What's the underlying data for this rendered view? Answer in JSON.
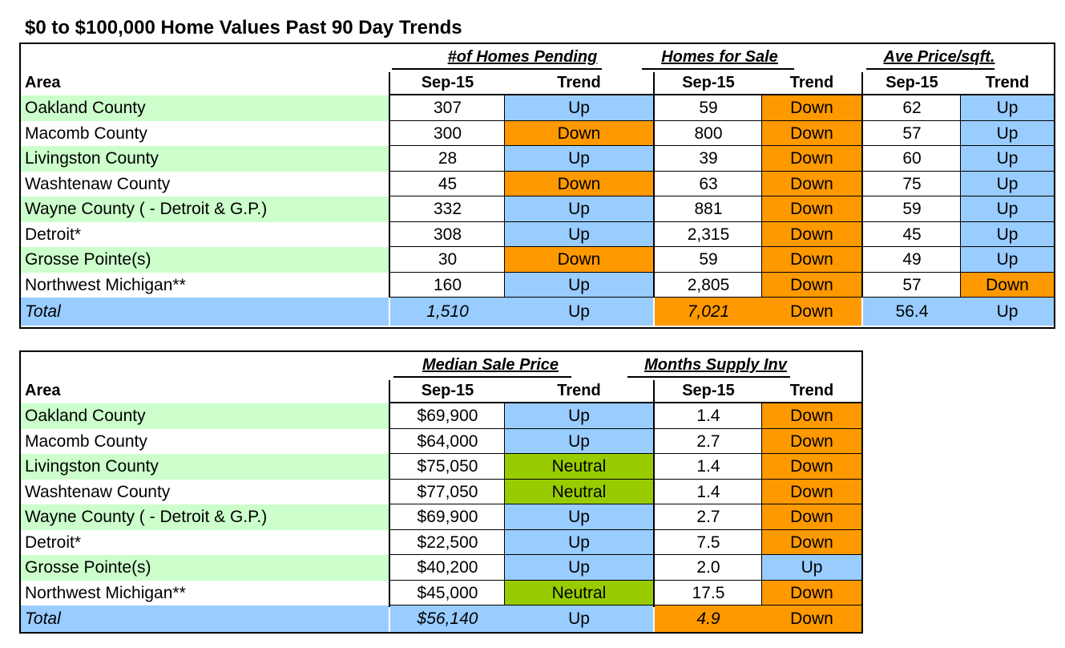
{
  "title": "$0 to $100,000 Home Values Past 90 Day Trends",
  "colors": {
    "area_green": "#CCFFCC",
    "up_blue": "#99CCFF",
    "down_orange": "#FF9900",
    "neutral_green": "#99CC00",
    "white": "#FFFFFF"
  },
  "table1": {
    "area_header": "Area",
    "groups": [
      "#of Homes Pending",
      "Homes for Sale",
      "Ave Price/sqft."
    ],
    "sub_headers": [
      "Sep-15",
      "Trend",
      "Sep-15",
      "Trend",
      "Sep-15",
      "Trend"
    ],
    "rows": [
      {
        "area": "Oakland County",
        "values": [
          "307",
          "Up",
          "59",
          "Down",
          "62",
          "Up"
        ]
      },
      {
        "area": "Macomb County",
        "values": [
          "300",
          "Down",
          "800",
          "Down",
          "57",
          "Up"
        ]
      },
      {
        "area": "Livingston County",
        "values": [
          "28",
          "Up",
          "39",
          "Down",
          "60",
          "Up"
        ]
      },
      {
        "area": "Washtenaw County",
        "values": [
          "45",
          "Down",
          "63",
          "Down",
          "75",
          "Up"
        ]
      },
      {
        "area": "Wayne County ( - Detroit & G.P.)",
        "values": [
          "332",
          "Up",
          "881",
          "Down",
          "59",
          "Up"
        ]
      },
      {
        "area": "Detroit*",
        "values": [
          "308",
          "Up",
          "2,315",
          "Down",
          "45",
          "Up"
        ]
      },
      {
        "area": "Grosse Pointe(s)",
        "values": [
          "30",
          "Down",
          "59",
          "Down",
          "49",
          "Up"
        ]
      },
      {
        "area": "Northwest Michigan**",
        "values": [
          "160",
          "Up",
          "2,805",
          "Down",
          "57",
          "Down"
        ]
      }
    ],
    "total": {
      "area": "Total",
      "values": [
        "1,510",
        "Up",
        "7,021",
        "Down",
        "56.4",
        "Up"
      ]
    }
  },
  "table2": {
    "area_header": "Area",
    "groups": [
      "Median Sale Price",
      "Months Supply Inv"
    ],
    "sub_headers": [
      "Sep-15",
      "Trend",
      "Sep-15",
      "Trend"
    ],
    "rows": [
      {
        "area": "Oakland County",
        "values": [
          "$69,900",
          "Up",
          "1.4",
          "Down"
        ]
      },
      {
        "area": "Macomb County",
        "values": [
          "$64,000",
          "Up",
          "2.7",
          "Down"
        ]
      },
      {
        "area": "Livingston County",
        "values": [
          "$75,050",
          "Neutral",
          "1.4",
          "Down"
        ]
      },
      {
        "area": "Washtenaw County",
        "values": [
          "$77,050",
          "Neutral",
          "1.4",
          "Down"
        ]
      },
      {
        "area": "Wayne County ( - Detroit & G.P.)",
        "values": [
          "$69,900",
          "Up",
          "2.7",
          "Down"
        ]
      },
      {
        "area": "Detroit*",
        "values": [
          "$22,500",
          "Up",
          "7.5",
          "Down"
        ]
      },
      {
        "area": "Grosse Pointe(s)",
        "values": [
          "$40,200",
          "Up",
          "2.0",
          "Up"
        ]
      },
      {
        "area": "Northwest Michigan**",
        "values": [
          "$45,000",
          "Neutral",
          "17.5",
          "Down"
        ]
      }
    ],
    "total": {
      "area": "Total",
      "values": [
        "$56,140",
        "Up",
        "4.9",
        "Down"
      ]
    }
  }
}
